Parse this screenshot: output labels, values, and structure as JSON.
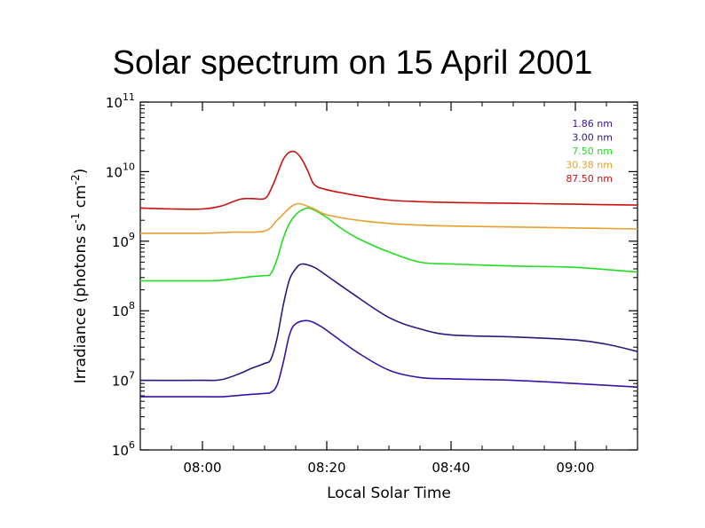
{
  "title": "Solar spectrum on 15 April 2001",
  "chart_data": {
    "type": "line",
    "title": "Solar spectrum on 15 April 2001",
    "xlabel": "Local Solar Time",
    "ylabel_parts": [
      "Irradiance  (photons s",
      "-1",
      " cm",
      "-2",
      ")"
    ],
    "xlim": [
      "07:50",
      "09:10"
    ],
    "x_ticks": [
      "08:00",
      "08:20",
      "08:40",
      "09:00"
    ],
    "y_scale": "log",
    "ylim": [
      1000000,
      100000000000
    ],
    "y_ticks": [
      {
        "base": "10",
        "exp": "6",
        "value": 1000000
      },
      {
        "base": "10",
        "exp": "7",
        "value": 10000000
      },
      {
        "base": "10",
        "exp": "8",
        "value": 100000000
      },
      {
        "base": "10",
        "exp": "9",
        "value": 1000000000
      },
      {
        "base": "10",
        "exp": "10",
        "value": 10000000000
      },
      {
        "base": "10",
        "exp": "11",
        "value": 100000000000
      }
    ],
    "legend_position": "top-right",
    "series": [
      {
        "name": "1.86 nm",
        "color": "#3b10a8",
        "x": [
          "07:50",
          "08:00",
          "08:03",
          "08:06",
          "08:08",
          "08:10",
          "08:11",
          "08:12",
          "08:13",
          "08:14",
          "08:15",
          "08:17",
          "08:19",
          "08:21",
          "08:25",
          "08:30",
          "08:35",
          "08:40",
          "08:50",
          "09:00",
          "09:10"
        ],
        "y": [
          5800000,
          5800000,
          5800000,
          6100000,
          6300000,
          6500000,
          6700000,
          8500000,
          18000000,
          45000000,
          65000000,
          72000000,
          60000000,
          45000000,
          25000000,
          14000000,
          11000000,
          10500000,
          10000000,
          9000000,
          8000000
        ]
      },
      {
        "name": "3.00 nm",
        "color": "#2a1a7a",
        "x": [
          "07:50",
          "08:00",
          "08:03",
          "08:06",
          "08:08",
          "08:10",
          "08:11",
          "08:12",
          "08:13",
          "08:14",
          "08:15",
          "08:16",
          "08:18",
          "08:20",
          "08:24",
          "08:30",
          "08:35",
          "08:40",
          "08:50",
          "09:00",
          "09:05",
          "09:10"
        ],
        "y": [
          10000000,
          10000000,
          10200000,
          12500000,
          15000000,
          17500000,
          20000000,
          40000000,
          120000000,
          280000000,
          400000000,
          470000000,
          420000000,
          320000000,
          180000000,
          80000000,
          55000000,
          45000000,
          42000000,
          38000000,
          33000000,
          26000000
        ]
      },
      {
        "name": "7.50 nm",
        "color": "#22dd22",
        "x": [
          "07:50",
          "08:00",
          "08:03",
          "08:06",
          "08:08",
          "08:10",
          "08:11",
          "08:12",
          "08:13",
          "08:14",
          "08:15",
          "08:16",
          "08:17",
          "08:18",
          "08:20",
          "08:22",
          "08:25",
          "08:30",
          "08:35",
          "08:40",
          "08:50",
          "09:00",
          "09:10"
        ],
        "y": [
          270000000,
          270000000,
          275000000,
          295000000,
          310000000,
          320000000,
          340000000,
          550000000,
          1100000000,
          1800000000,
          2400000000,
          2800000000,
          3000000000,
          2800000000,
          2200000000,
          1600000000,
          1100000000,
          700000000,
          500000000,
          470000000,
          440000000,
          420000000,
          360000000
        ]
      },
      {
        "name": "30.38 nm",
        "color": "#e8a030",
        "x": [
          "07:50",
          "08:00",
          "08:05",
          "08:10",
          "08:12",
          "08:14",
          "08:15",
          "08:16",
          "08:18",
          "08:20",
          "08:25",
          "08:30",
          "08:35",
          "08:40",
          "08:50",
          "09:00",
          "09:10"
        ],
        "y": [
          1300000000,
          1300000000,
          1350000000,
          1400000000,
          2000000000,
          3000000000,
          3400000000,
          3400000000,
          2900000000,
          2400000000,
          2000000000,
          1800000000,
          1700000000,
          1650000000,
          1600000000,
          1550000000,
          1500000000
        ]
      },
      {
        "name": "87.50 nm",
        "color": "#cc1111",
        "x": [
          "07:50",
          "07:55",
          "08:00",
          "08:03",
          "08:06",
          "08:08",
          "08:10",
          "08:11",
          "08:12",
          "08:13",
          "08:14",
          "08:15",
          "08:16",
          "08:17",
          "08:18",
          "08:20",
          "08:25",
          "08:30",
          "08:35",
          "08:40",
          "08:50",
          "09:00",
          "09:10"
        ],
        "y": [
          3000000000,
          2900000000,
          2900000000,
          3200000000,
          4000000000,
          4100000000,
          4100000000,
          5500000000,
          9000000000,
          15000000000,
          19000000000,
          19000000000,
          15000000000,
          10000000000,
          6500000000,
          5500000000,
          4500000000,
          3900000000,
          3700000000,
          3600000000,
          3500000000,
          3400000000,
          3300000000
        ]
      }
    ]
  }
}
